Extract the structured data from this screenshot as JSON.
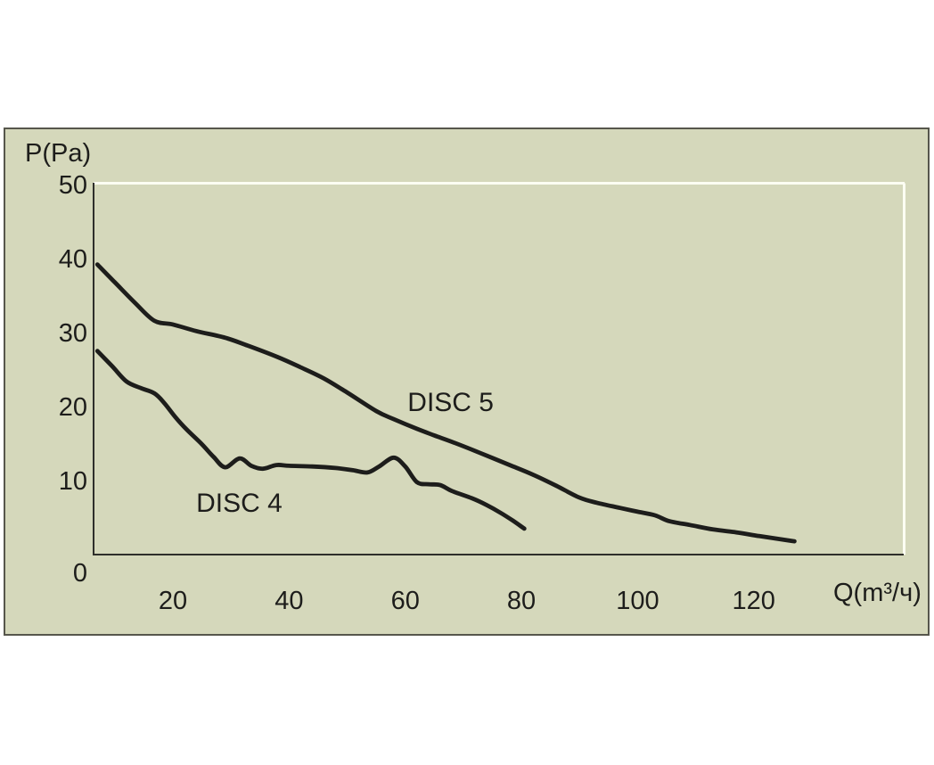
{
  "colors": {
    "page_bg": "#ffffff",
    "panel_bg": "#d5d8bb",
    "panel_border": "#56564c",
    "axis": "#2e2e2a",
    "plot_border_light": "#fcfdf2",
    "curve": "#1d1d1b",
    "text": "#1d1d1b"
  },
  "chart_data": {
    "type": "line",
    "title": "",
    "xlabel": "Q(m³/ч)",
    "ylabel": "P(Pa)",
    "x_ticks": [
      20,
      40,
      60,
      80,
      100,
      120
    ],
    "y_ticks": [
      0,
      10,
      20,
      30,
      40,
      50
    ],
    "xlim": [
      6.3,
      145.7
    ],
    "ylim": [
      0,
      50
    ],
    "grid": false,
    "legend_position": "inline-labels",
    "series": [
      {
        "name": "DISC 5",
        "label_at": {
          "q": 60.4,
          "p": 19.4
        },
        "points": [
          [
            7,
            39.2
          ],
          [
            10,
            36.8
          ],
          [
            13.5,
            34.0
          ],
          [
            16.8,
            31.6
          ],
          [
            20,
            31.1
          ],
          [
            24,
            30.2
          ],
          [
            29,
            29.3
          ],
          [
            33,
            28.2
          ],
          [
            38,
            26.7
          ],
          [
            42,
            25.3
          ],
          [
            46,
            23.8
          ],
          [
            50,
            21.9
          ],
          [
            55,
            19.4
          ],
          [
            58,
            18.3
          ],
          [
            62,
            17.0
          ],
          [
            65,
            16.1
          ],
          [
            68.5,
            15.1
          ],
          [
            73,
            13.7
          ],
          [
            78,
            12.1
          ],
          [
            82,
            10.8
          ],
          [
            86,
            9.3
          ],
          [
            90,
            7.7
          ],
          [
            93,
            7.0
          ],
          [
            97,
            6.3
          ],
          [
            100,
            5.8
          ],
          [
            103,
            5.3
          ],
          [
            105.5,
            4.5
          ],
          [
            109,
            4.0
          ],
          [
            113,
            3.4
          ],
          [
            117,
            3.0
          ],
          [
            121,
            2.5
          ],
          [
            127,
            1.8
          ]
        ]
      },
      {
        "name": "DISC 4",
        "label_at": {
          "q": 24.0,
          "p": 5.8
        },
        "points": [
          [
            7,
            27.5
          ],
          [
            9.5,
            25.5
          ],
          [
            12,
            23.4
          ],
          [
            14.5,
            22.5
          ],
          [
            16.8,
            21.8
          ],
          [
            18.5,
            20.5
          ],
          [
            20.5,
            18.5
          ],
          [
            22.5,
            16.8
          ],
          [
            25,
            14.9
          ],
          [
            27,
            13.2
          ],
          [
            29,
            11.8
          ],
          [
            31.5,
            13.0
          ],
          [
            33.5,
            12.0
          ],
          [
            35.5,
            11.6
          ],
          [
            37.8,
            12.1
          ],
          [
            40,
            12.0
          ],
          [
            44,
            11.9
          ],
          [
            48,
            11.7
          ],
          [
            51,
            11.4
          ],
          [
            53.5,
            11.1
          ],
          [
            55.5,
            11.9
          ],
          [
            58,
            13.1
          ],
          [
            60,
            11.9
          ],
          [
            62,
            9.8
          ],
          [
            64,
            9.5
          ],
          [
            66,
            9.4
          ],
          [
            68,
            8.6
          ],
          [
            71.5,
            7.6
          ],
          [
            74,
            6.7
          ],
          [
            76.5,
            5.6
          ],
          [
            78.5,
            4.6
          ],
          [
            80.5,
            3.5
          ]
        ]
      }
    ]
  }
}
